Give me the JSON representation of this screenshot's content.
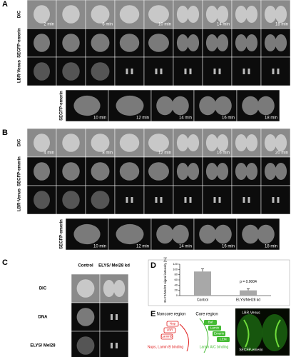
{
  "panel_a": {
    "label": "A",
    "rows": [
      "DIC",
      "SECFP-emerin",
      "LBR-Venus"
    ],
    "times": [
      "2 min",
      "6 min",
      "10 min",
      "14 min",
      "18 min"
    ],
    "zoom_row": "SECFP-emerin",
    "zoom_times": [
      "10 min",
      "12 min",
      "14 min",
      "16 min",
      "18 min"
    ]
  },
  "panel_b": {
    "label": "B",
    "rows": [
      "DIC",
      "SECFP-emerin",
      "LBR-Venus"
    ],
    "times": [
      "4 min",
      "8 min",
      "12 min",
      "16 min",
      "20 min"
    ],
    "zoom_row": "SECFP-emerin",
    "zoom_times": [
      "10 min",
      "12 min",
      "14 min",
      "16 min",
      "18 min"
    ]
  },
  "panel_c": {
    "label": "C",
    "columns": [
      "Control",
      "ELYS/ Mel28 kd"
    ],
    "rows": [
      "DIC",
      "DNA",
      "ELYS/ Mel28"
    ]
  },
  "panel_d": {
    "label": "D"
  },
  "chart_data": {
    "type": "bar",
    "categories": [
      "Control",
      "ELYS/Mel28 kd"
    ],
    "values": [
      92,
      20
    ],
    "errors": [
      10,
      6
    ],
    "ylabel": "ELYS/Mel28 signal intensity [%]",
    "annotation": "p = 0.0004",
    "ylim": [
      0,
      120
    ],
    "yticks": [
      0,
      20,
      40,
      60,
      80,
      100,
      120
    ],
    "color": "#a8a8a8"
  },
  "panel_e": {
    "label": "E",
    "noncore": "Noncore region",
    "core": "Core region",
    "noncore_items": [
      "Nup",
      "LBR",
      "LaminB"
    ],
    "core_items": [
      "Baf",
      "Lamin",
      "Emerin",
      "LEM"
    ],
    "noncore_binding": "Nups, Lamin B binding",
    "core_binding": "Lamin A/C binding",
    "image_labels": [
      "LBR-Venus",
      "SECFP-emerin"
    ]
  }
}
